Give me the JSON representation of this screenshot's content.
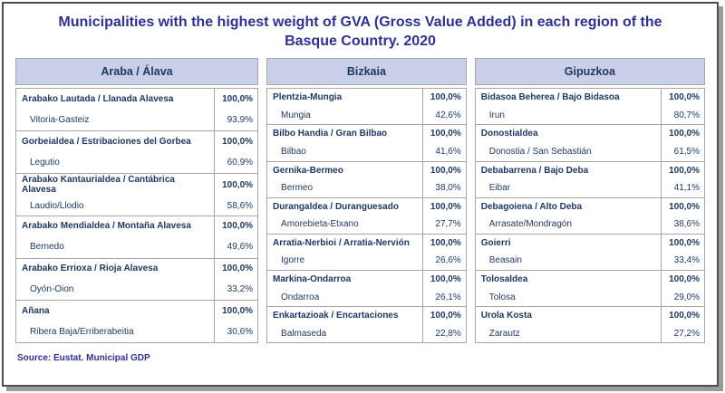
{
  "title": "Municipalities with the highest weight of GVA (Gross Value Added) in each region of the Basque Country. 2020",
  "source": "Source: Eustat. Municipal GDP",
  "colors": {
    "title": "#2e3192",
    "text": "#1f3864",
    "header_bg": "#c9cfe6",
    "border": "#a6a6a6",
    "frame_border": "#4d4d4d",
    "shadow": "#9a9a9a"
  },
  "chart_data": {
    "type": "table",
    "title": "Municipalities with the highest weight of GVA (Gross Value Added) in each region of the Basque Country. 2020",
    "columns": [
      {
        "header": "Araba / Álava",
        "rows": [
          {
            "region": "Arabako Lautada / Llanada Alavesa",
            "region_value": "100,0%",
            "municipality": "Vitoria-Gasteiz",
            "municipality_value": "93,9%"
          },
          {
            "region": "Gorbeialdea / Estribaciones del Gorbea",
            "region_value": "100,0%",
            "municipality": "Legutio",
            "municipality_value": "60,9%"
          },
          {
            "region": "Arabako Kantaurialdea / Cantábrica Alavesa",
            "region_value": "100,0%",
            "municipality": "Laudio/Llodio",
            "municipality_value": "58,6%"
          },
          {
            "region": "Arabako Mendialdea / Montaña Alavesa",
            "region_value": "100,0%",
            "municipality": "Bernedo",
            "municipality_value": "49,6%"
          },
          {
            "region": "Arabako Errioxa / Rioja Alavesa",
            "region_value": "100,0%",
            "municipality": "Oyón-Oion",
            "municipality_value": "33,2%"
          },
          {
            "region": "Añana",
            "region_value": "100,0%",
            "municipality": "Ribera Baja/Erriberabeitia",
            "municipality_value": "30,6%"
          }
        ]
      },
      {
        "header": "Bizkaia",
        "rows": [
          {
            "region": "Plentzia-Mungia",
            "region_value": "100,0%",
            "municipality": "Mungia",
            "municipality_value": "42,6%"
          },
          {
            "region": "Bilbo Handia / Gran Bilbao",
            "region_value": "100,0%",
            "municipality": "Bilbao",
            "municipality_value": "41,6%"
          },
          {
            "region": "Gernika-Bermeo",
            "region_value": "100,0%",
            "municipality": "Bermeo",
            "municipality_value": "38,0%"
          },
          {
            "region": "Durangaldea / Duranguesado",
            "region_value": "100,0%",
            "municipality": "Amorebieta-Etxano",
            "municipality_value": "27,7%"
          },
          {
            "region": "Arratia-Nerbioi / Arratia-Nervión",
            "region_value": "100,0%",
            "municipality": "Igorre",
            "municipality_value": "26,6%"
          },
          {
            "region": "Markina-Ondarroa",
            "region_value": "100,0%",
            "municipality": "Ondarroa",
            "municipality_value": "26,1%"
          },
          {
            "region": "Enkartazioak / Encartaciones",
            "region_value": "100,0%",
            "municipality": "Balmaseda",
            "municipality_value": "22,8%"
          }
        ]
      },
      {
        "header": "Gipuzkoa",
        "rows": [
          {
            "region": "Bidasoa Beherea / Bajo Bidasoa",
            "region_value": "100,0%",
            "municipality": "Irun",
            "municipality_value": "80,7%"
          },
          {
            "region": "Donostialdea",
            "region_value": "100,0%",
            "municipality": "Donostia / San Sebastián",
            "municipality_value": "61,5%"
          },
          {
            "region": "Debabarrena / Bajo Deba",
            "region_value": "100,0%",
            "municipality": "Eibar",
            "municipality_value": "41,1%"
          },
          {
            "region": "Debagoiena / Alto Deba",
            "region_value": "100,0%",
            "municipality": "Arrasate/Mondragón",
            "municipality_value": "38,6%"
          },
          {
            "region": "Goierri",
            "region_value": "100,0%",
            "municipality": "Beasain",
            "municipality_value": "33,4%"
          },
          {
            "region": "Tolosaldea",
            "region_value": "100,0%",
            "municipality": "Tolosa",
            "municipality_value": "29,0%"
          },
          {
            "region": "Urola Kosta",
            "region_value": "100,0%",
            "municipality": "Zarautz",
            "municipality_value": "27,2%"
          }
        ]
      }
    ]
  }
}
